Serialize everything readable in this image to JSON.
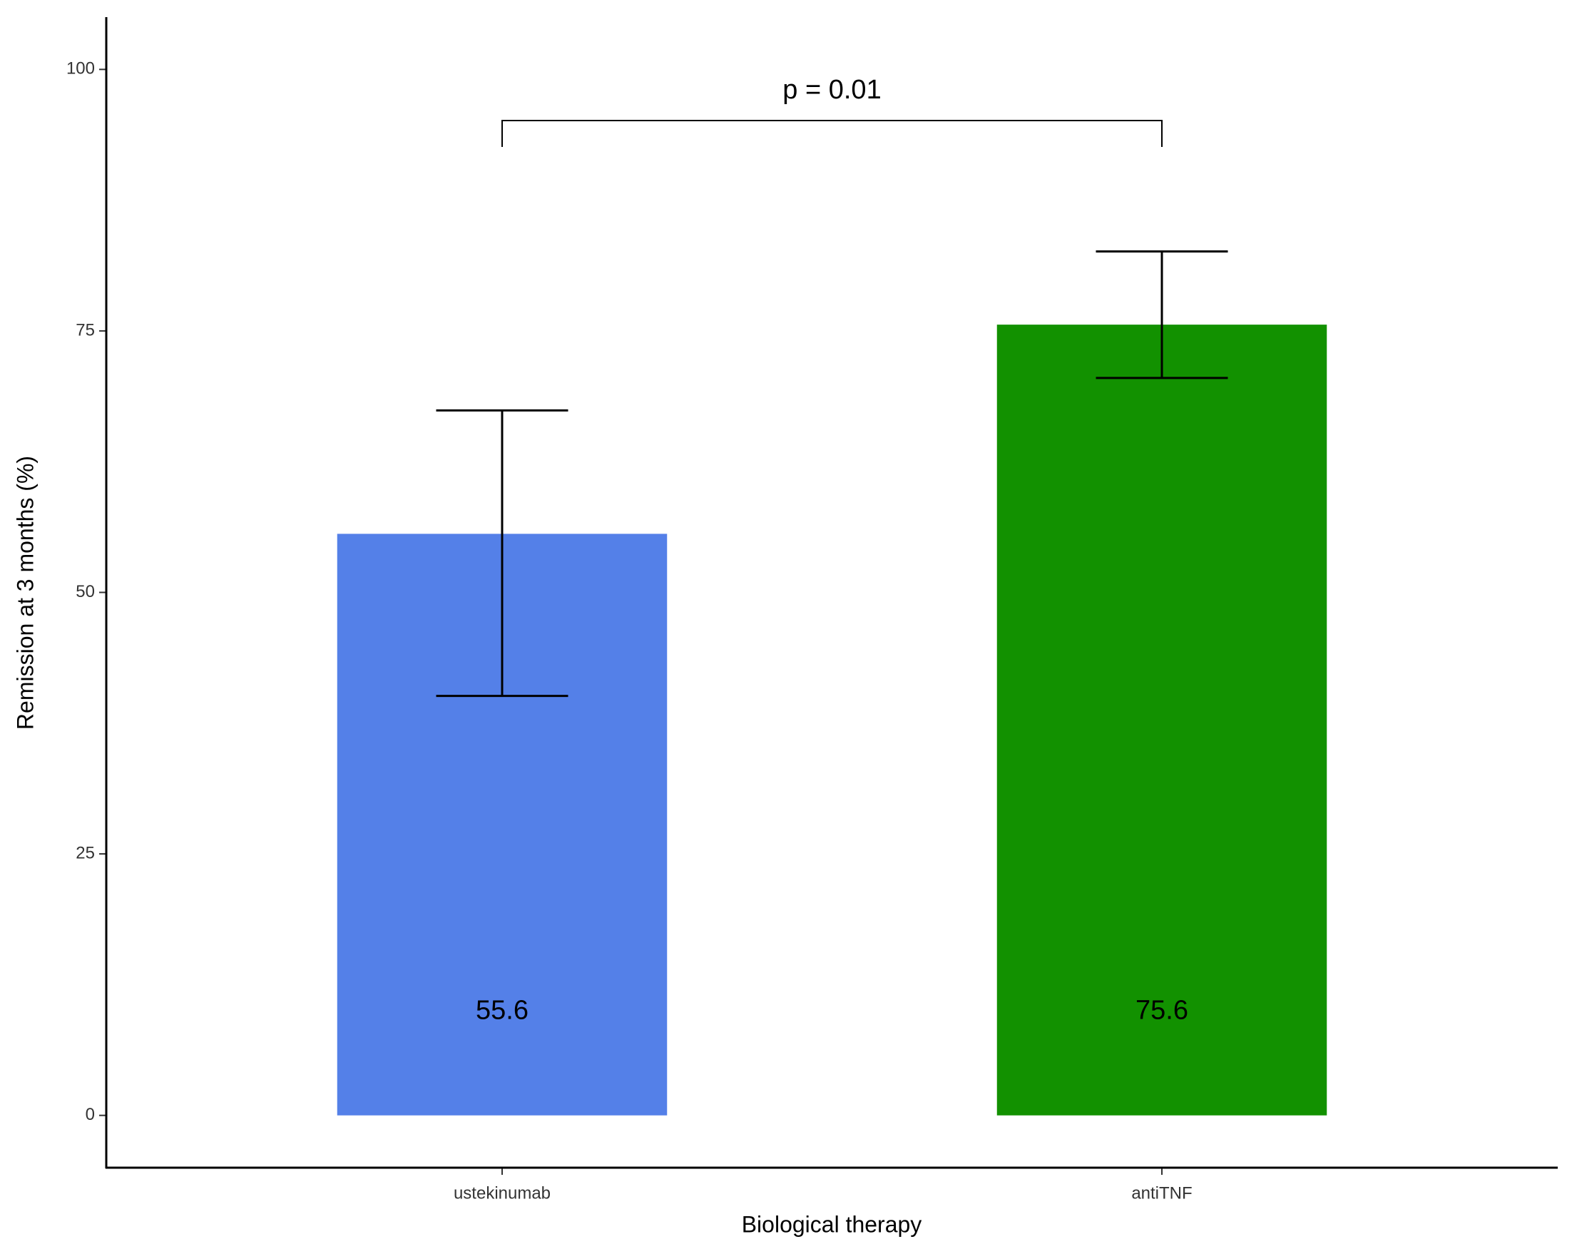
{
  "chart_data": {
    "type": "bar",
    "x_label": "Biological therapy",
    "y_label": "Remission at 3 months (%)",
    "categories": [
      "ustekinumab",
      "antiTNF"
    ],
    "values": [
      55.6,
      75.6
    ],
    "colors": [
      "#5480e8",
      "#129100"
    ],
    "error_lower": [
      40.1,
      70.5
    ],
    "error_upper": [
      67.4,
      82.6
    ],
    "ylim": [
      -5,
      105
    ],
    "yticks": [
      0,
      25,
      50,
      75,
      100
    ],
    "annotations": [
      {
        "text": "p = 0.01",
        "between": [
          "ustekinumab",
          "antiTNF"
        ]
      }
    ]
  }
}
